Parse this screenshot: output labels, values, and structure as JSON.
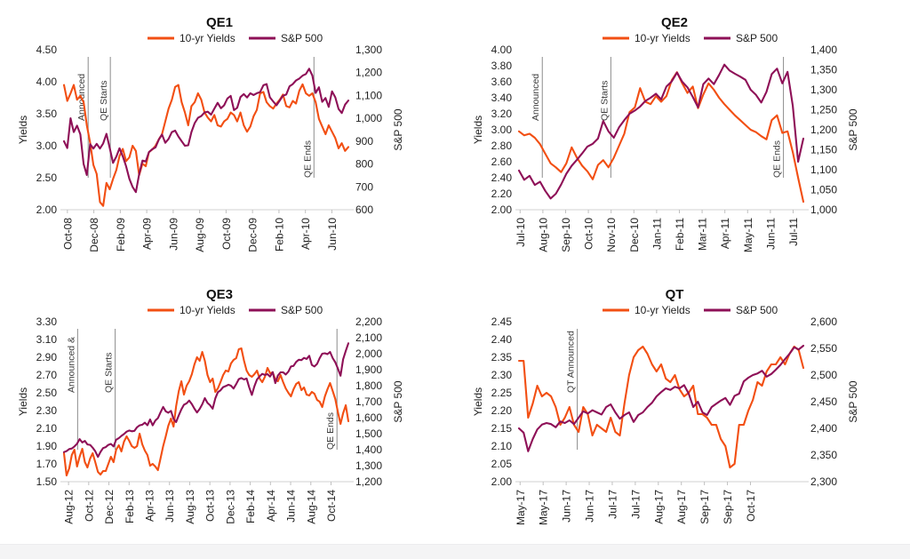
{
  "page": {
    "background": "#ffffff",
    "footer_color": "#f4f4f5"
  },
  "colors": {
    "yields": "#f24f13",
    "sp500": "#8e1057",
    "annotation_line": "#8c8c8c",
    "axis_line": "#d9d9d9",
    "tick_mark": "#c0c0c0",
    "text": "#1f1f1f"
  },
  "legend": {
    "yields_label": "10-yr Yields",
    "sp500_label": "S&P 500"
  },
  "chart_data": [
    {
      "type": "line",
      "id": "qe1",
      "title": "QE1",
      "left_axis": {
        "label": "Yields",
        "min": 2.0,
        "max": 4.5,
        "ticks": [
          "2.00",
          "2.50",
          "3.00",
          "3.50",
          "4.00",
          "4.50"
        ]
      },
      "right_axis": {
        "label": "S&P 500",
        "min": 600,
        "max": 1300,
        "ticks": [
          "600",
          "700",
          "800",
          "900",
          "1,000",
          "1,100",
          "1,200",
          "1,300"
        ]
      },
      "x_ticks": [
        "Oct-08",
        "Dec-08",
        "Feb-09",
        "Apr-09",
        "Jun-09",
        "Aug-09",
        "Oct-09",
        "Dec-09",
        "Feb-10",
        "Apr-10",
        "Jun-10"
      ],
      "x_tick_first": 0.012,
      "x_tick_step": 0.093,
      "annotations": [
        {
          "label": "Announced",
          "x": 0.085,
          "pos": "top"
        },
        {
          "label": "QE Starts",
          "x": 0.163,
          "pos": "top"
        },
        {
          "label": "QE Ends",
          "x": 0.879,
          "pos": "bottom"
        }
      ],
      "series": [
        {
          "name": "10-yr Yields",
          "axis": "left",
          "color": "yields",
          "values": [
            3.95,
            3.7,
            3.82,
            3.95,
            3.72,
            3.78,
            3.68,
            3.32,
            3.05,
            2.7,
            2.56,
            2.12,
            2.06,
            2.42,
            2.32,
            2.48,
            2.62,
            2.84,
            2.95,
            2.76,
            2.82,
            3.0,
            2.92,
            2.54,
            2.72,
            2.68,
            2.9,
            2.94,
            3.0,
            3.1,
            3.18,
            3.38,
            3.58,
            3.72,
            3.92,
            3.95,
            3.68,
            3.52,
            3.32,
            3.62,
            3.68,
            3.82,
            3.72,
            3.52,
            3.44,
            3.38,
            3.48,
            3.32,
            3.3,
            3.38,
            3.42,
            3.52,
            3.48,
            3.38,
            3.52,
            3.32,
            3.22,
            3.3,
            3.46,
            3.56,
            3.82,
            3.84,
            3.68,
            3.62,
            3.58,
            3.66,
            3.72,
            3.8,
            3.62,
            3.6,
            3.7,
            3.66,
            3.86,
            3.96,
            3.82,
            3.78,
            3.82,
            3.68,
            3.42,
            3.3,
            3.18,
            3.32,
            3.22,
            3.12,
            2.96,
            3.04,
            2.92,
            2.98
          ]
        },
        {
          "name": "S&P 500",
          "axis": "right",
          "color": "sp500",
          "values": [
            900,
            870,
            1000,
            940,
            968,
            930,
            800,
            752,
            887,
            868,
            888,
            868,
            890,
            932,
            870,
            805,
            832,
            869,
            833,
            790,
            735,
            700,
            677,
            756,
            815,
            811,
            852,
            865,
            873,
            907,
            929,
            893,
            910,
            940,
            946,
            921,
            900,
            880,
            882,
            940,
            979,
            1002,
            1010,
            1026,
            1029,
            1016,
            1042,
            1068,
            1044,
            1057,
            1087,
            1098,
            1036,
            1046,
            1093,
            1106,
            1091,
            1110,
            1102,
            1110,
            1115,
            1145,
            1150,
            1092,
            1074,
            1057,
            1078,
            1099,
            1104,
            1140,
            1150,
            1166,
            1174,
            1187,
            1194,
            1217,
            1187,
            1111,
            1136,
            1072,
            1089,
            1050,
            1118,
            1092,
            1041,
            1023,
            1060,
            1078
          ]
        }
      ]
    },
    {
      "type": "line",
      "id": "qe2",
      "title": "QE2",
      "left_axis": {
        "label": "Yields",
        "min": 2.0,
        "max": 4.0,
        "ticks": [
          "2.00",
          "2.20",
          "2.40",
          "2.60",
          "2.80",
          "3.00",
          "3.20",
          "3.40",
          "3.60",
          "3.80",
          "4.00"
        ]
      },
      "right_axis": {
        "label": "S&P 500",
        "min": 1000,
        "max": 1400,
        "ticks": [
          "1,000",
          "1,050",
          "1,100",
          "1,150",
          "1,200",
          "1,250",
          "1,300",
          "1,350",
          "1,400"
        ]
      },
      "x_ticks": [
        "Jul-10",
        "Aug-10",
        "Sep-10",
        "Oct-10",
        "Nov-10",
        "Dec-10",
        "Jan-11",
        "Feb-11",
        "Mar-11",
        "Apr-11",
        "May-11",
        "Jun-11",
        "Jul-11"
      ],
      "x_tick_first": 0.004,
      "x_tick_step": 0.08,
      "annotations": [
        {
          "label": "Announced",
          "x": 0.082,
          "pos": "top"
        },
        {
          "label": "QE Starts",
          "x": 0.323,
          "pos": "top"
        },
        {
          "label": "QE Ends",
          "x": 0.93,
          "pos": "bottom"
        }
      ],
      "series": [
        {
          "name": "10-yr Yields",
          "axis": "left",
          "color": "yields",
          "values": [
            2.98,
            2.93,
            2.95,
            2.9,
            2.82,
            2.7,
            2.58,
            2.53,
            2.47,
            2.58,
            2.78,
            2.65,
            2.55,
            2.48,
            2.38,
            2.56,
            2.62,
            2.53,
            2.65,
            2.8,
            2.95,
            3.22,
            3.28,
            3.52,
            3.35,
            3.32,
            3.42,
            3.35,
            3.42,
            3.62,
            3.72,
            3.58,
            3.46,
            3.54,
            3.27,
            3.44,
            3.58,
            3.5,
            3.4,
            3.32,
            3.25,
            3.18,
            3.12,
            3.06,
            3.0,
            2.97,
            2.92,
            2.88,
            3.12,
            3.18,
            2.96,
            2.98,
            2.72,
            2.4,
            2.1
          ]
        },
        {
          "name": "S&P 500",
          "axis": "right",
          "color": "sp500",
          "values": [
            1098,
            1075,
            1085,
            1062,
            1070,
            1047,
            1028,
            1040,
            1063,
            1090,
            1110,
            1125,
            1141,
            1158,
            1165,
            1178,
            1222,
            1196,
            1180,
            1206,
            1224,
            1240,
            1248,
            1258,
            1272,
            1280,
            1290,
            1276,
            1308,
            1321,
            1343,
            1320,
            1306,
            1282,
            1256,
            1314,
            1328,
            1314,
            1337,
            1363,
            1348,
            1340,
            1333,
            1325,
            1300,
            1287,
            1268,
            1295,
            1339,
            1353,
            1316,
            1345,
            1260,
            1120,
            1178
          ]
        }
      ]
    },
    {
      "type": "line",
      "id": "qe3",
      "title": "QE3",
      "left_axis": {
        "label": "Yields",
        "min": 1.5,
        "max": 3.3,
        "ticks": [
          "1.50",
          "1.70",
          "1.90",
          "2.10",
          "2.30",
          "2.50",
          "2.70",
          "2.90",
          "3.10",
          "3.30"
        ]
      },
      "right_axis": {
        "label": "S&P 500",
        "min": 1200,
        "max": 2200,
        "ticks": [
          "1,200",
          "1,300",
          "1,400",
          "1,500",
          "1,600",
          "1,700",
          "1,800",
          "1,900",
          "2,000",
          "2,100",
          "2,200"
        ]
      },
      "x_ticks": [
        "Aug-12",
        "Oct-12",
        "Dec-12",
        "Feb-13",
        "Apr-13",
        "Jun-13",
        "Aug-13",
        "Oct-13",
        "Dec-13",
        "Feb-14",
        "Apr-14",
        "Jun-14",
        "Aug-14",
        "Oct-14"
      ],
      "x_tick_first": 0.016,
      "x_tick_step": 0.071,
      "annotations": [
        {
          "label": "Announced &",
          "x": 0.048,
          "pos": "top"
        },
        {
          "label": "QE Starts",
          "x": 0.18,
          "pos": "top"
        },
        {
          "label": "QE Ends",
          "x": 0.96,
          "pos": "bottom"
        }
      ],
      "series": [
        {
          "name": "10-yr Yields",
          "axis": "left",
          "color": "yields",
          "values": [
            1.82,
            1.57,
            1.65,
            1.8,
            1.86,
            1.67,
            1.78,
            1.87,
            1.72,
            1.66,
            1.76,
            1.82,
            1.72,
            1.61,
            1.58,
            1.62,
            1.62,
            1.7,
            1.78,
            1.72,
            1.86,
            1.91,
            1.84,
            1.95,
            2.01,
            1.96,
            1.9,
            1.88,
            1.9,
            2.04,
            1.92,
            1.85,
            1.8,
            1.68,
            1.7,
            1.67,
            1.63,
            1.76,
            1.9,
            2.01,
            2.13,
            2.21,
            2.12,
            2.35,
            2.52,
            2.63,
            2.48,
            2.58,
            2.63,
            2.71,
            2.82,
            2.9,
            2.86,
            2.96,
            2.86,
            2.7,
            2.62,
            2.66,
            2.51,
            2.55,
            2.62,
            2.7,
            2.75,
            2.74,
            2.83,
            2.87,
            2.89,
            2.99,
            3.0,
            2.86,
            2.75,
            2.7,
            2.68,
            2.71,
            2.75,
            2.66,
            2.62,
            2.68,
            2.78,
            2.72,
            2.73,
            2.65,
            2.63,
            2.7,
            2.62,
            2.55,
            2.5,
            2.46,
            2.54,
            2.6,
            2.62,
            2.53,
            2.56,
            2.48,
            2.47,
            2.51,
            2.49,
            2.42,
            2.4,
            2.34,
            2.46,
            2.54,
            2.61,
            2.52,
            2.43,
            2.28,
            2.15,
            2.27,
            2.36,
            2.18
          ]
        },
        {
          "name": "S&P 500",
          "axis": "right",
          "color": "sp500",
          "values": [
            1385,
            1391,
            1404,
            1407,
            1420,
            1437,
            1466,
            1445,
            1455,
            1433,
            1430,
            1412,
            1390,
            1355,
            1386,
            1410,
            1416,
            1430,
            1436,
            1420,
            1462,
            1472,
            1486,
            1498,
            1513,
            1520,
            1515,
            1518,
            1540,
            1552,
            1556,
            1569,
            1553,
            1589,
            1552,
            1582,
            1597,
            1633,
            1667,
            1640,
            1631,
            1643,
            1592,
            1573,
            1615,
            1652,
            1681,
            1690,
            1707,
            1685,
            1656,
            1633,
            1655,
            1684,
            1722,
            1692,
            1678,
            1656,
            1721,
            1760,
            1771,
            1791,
            1798,
            1806,
            1800,
            1782,
            1810,
            1841,
            1848,
            1839,
            1845,
            1790,
            1742,
            1797,
            1839,
            1859,
            1874,
            1867,
            1872,
            1857,
            1885,
            1816,
            1864,
            1884,
            1884,
            1870,
            1888,
            1920,
            1924,
            1949,
            1962,
            1960,
            1974,
            1967,
            1987,
            1930,
            1920,
            1936,
            1972,
            2000,
            2003,
            1997,
            2011,
            1972,
            1946,
            1906,
            1862,
            1965,
            2018,
            2065
          ]
        }
      ]
    },
    {
      "type": "line",
      "id": "qt",
      "title": "QT",
      "left_axis": {
        "label": "Yields",
        "min": 2.0,
        "max": 2.45,
        "ticks": [
          "2.00",
          "2.05",
          "2.10",
          "2.15",
          "2.20",
          "2.25",
          "2.30",
          "2.35",
          "2.40",
          "2.45"
        ]
      },
      "right_axis": {
        "label": "S&P 500",
        "min": 2300,
        "max": 2600,
        "ticks": [
          "2,300",
          "2,350",
          "2,400",
          "2,450",
          "2,500",
          "2,550",
          "2,600"
        ]
      },
      "x_ticks": [
        "May-17",
        "May-17",
        "Jun-17",
        "Jun-17",
        "Jul-17",
        "Jul-17",
        "Aug-17",
        "Aug-17",
        "Sep-17",
        "Sep-17",
        "Oct-17"
      ],
      "x_tick_first": 0.004,
      "x_tick_step": 0.081,
      "annotations": [
        {
          "label": "QT Announced",
          "x": 0.205,
          "pos": "top"
        }
      ],
      "series": [
        {
          "name": "10-yr Yields",
          "axis": "left",
          "color": "yields",
          "values": [
            2.34,
            2.34,
            2.18,
            2.22,
            2.27,
            2.24,
            2.25,
            2.24,
            2.21,
            2.16,
            2.18,
            2.21,
            2.16,
            2.14,
            2.21,
            2.19,
            2.13,
            2.16,
            2.15,
            2.14,
            2.18,
            2.14,
            2.13,
            2.22,
            2.3,
            2.35,
            2.37,
            2.38,
            2.36,
            2.33,
            2.31,
            2.33,
            2.29,
            2.28,
            2.3,
            2.26,
            2.24,
            2.25,
            2.27,
            2.19,
            2.19,
            2.18,
            2.16,
            2.16,
            2.12,
            2.1,
            2.04,
            2.05,
            2.16,
            2.16,
            2.2,
            2.23,
            2.28,
            2.27,
            2.31,
            2.33,
            2.33,
            2.35,
            2.33,
            2.36,
            2.38,
            2.37,
            2.32
          ]
        },
        {
          "name": "S&P 500",
          "axis": "right",
          "color": "sp500",
          "values": [
            2400,
            2392,
            2357,
            2380,
            2398,
            2407,
            2410,
            2408,
            2402,
            2413,
            2410,
            2415,
            2408,
            2420,
            2432,
            2428,
            2434,
            2430,
            2426,
            2440,
            2445,
            2430,
            2418,
            2425,
            2430,
            2412,
            2425,
            2430,
            2440,
            2448,
            2460,
            2468,
            2475,
            2472,
            2478,
            2475,
            2481,
            2465,
            2440,
            2450,
            2430,
            2425,
            2440,
            2446,
            2452,
            2457,
            2444,
            2461,
            2465,
            2488,
            2495,
            2500,
            2503,
            2508,
            2497,
            2502,
            2510,
            2519,
            2530,
            2540,
            2552,
            2548,
            2555
          ]
        }
      ]
    }
  ]
}
